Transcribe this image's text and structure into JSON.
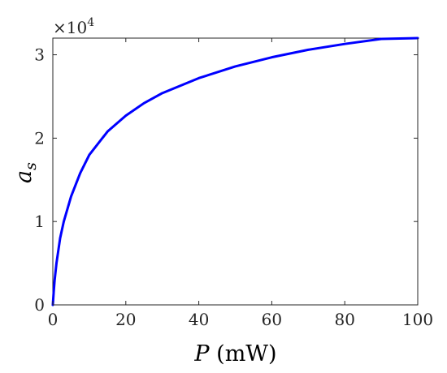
{
  "chart_data": {
    "type": "line",
    "xlabel_symbol": "P",
    "xlabel_unit": "(mW)",
    "ylabel_symbol": "a",
    "ylabel_subscript": "s",
    "y_multiplier_prefix": "×10",
    "y_multiplier_exponent": "4",
    "xlim": [
      0,
      100
    ],
    "ylim": [
      0,
      3.2
    ],
    "x_ticks": [
      0,
      20,
      40,
      60,
      80,
      100
    ],
    "y_ticks": [
      0,
      1,
      2,
      3
    ],
    "x_tick_labels": [
      "0",
      "20",
      "40",
      "60",
      "80",
      "100"
    ],
    "y_tick_labels": [
      "0",
      "1",
      "2",
      "3"
    ],
    "grid": false,
    "series": [
      {
        "color": "#0000ff",
        "x": [
          0,
          0.25,
          0.5,
          1,
          2,
          3,
          5,
          7.5,
          10,
          15,
          20,
          25,
          30,
          40,
          50,
          60,
          70,
          80,
          90,
          100
        ],
        "y": [
          0,
          0.16,
          0.3,
          0.5,
          0.8,
          1.0,
          1.3,
          1.58,
          1.8,
          2.08,
          2.27,
          2.42,
          2.54,
          2.72,
          2.86,
          2.97,
          3.06,
          3.13,
          3.19,
          3.24
        ]
      }
    ]
  }
}
